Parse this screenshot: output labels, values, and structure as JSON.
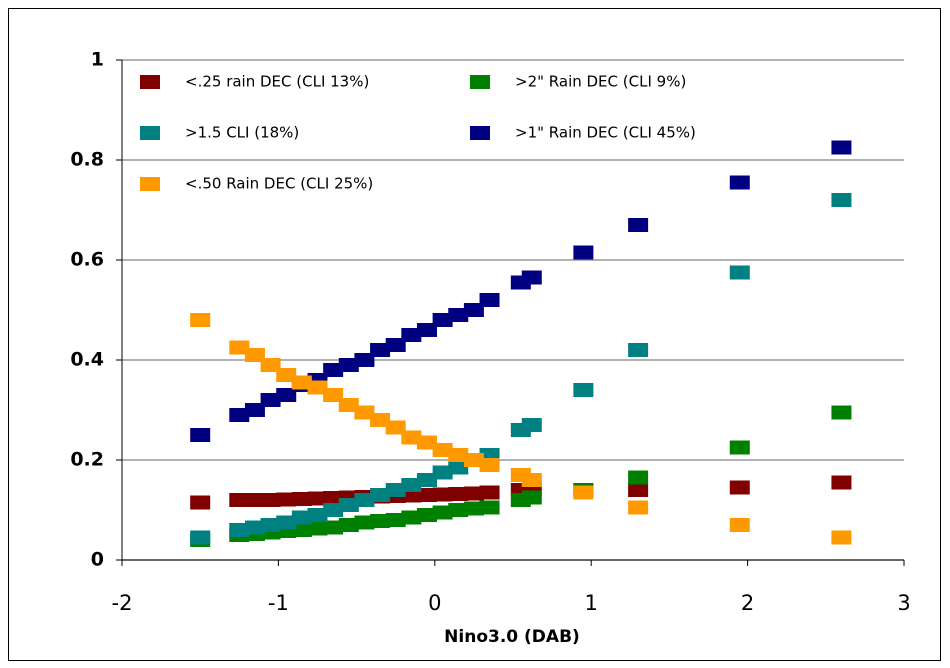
{
  "chart_data": {
    "type": "scatter",
    "x_label": "Nino3.0 (DAB)",
    "x": [
      -1.5,
      -1.25,
      -1.15,
      -1.05,
      -0.95,
      -0.85,
      -0.75,
      -0.65,
      -0.55,
      -0.45,
      -0.35,
      -0.25,
      -0.15,
      -0.05,
      0.05,
      0.15,
      0.25,
      0.35,
      0.55,
      0.62,
      0.95,
      1.3,
      1.95,
      2.6
    ],
    "series": [
      {
        "name": "<.25 rain DEC (CLI 13%)",
        "color": "#800000",
        "values": [
          0.115,
          0.12,
          0.12,
          0.12,
          0.121,
          0.122,
          0.123,
          0.124,
          0.125,
          0.126,
          0.127,
          0.128,
          0.129,
          0.13,
          0.131,
          0.132,
          0.133,
          0.135,
          0.14,
          0.14,
          0.14,
          0.14,
          0.145,
          0.155
        ]
      },
      {
        "name": ">2\" Rain DEC (CLI 9%)",
        "color": "#008000",
        "values": [
          0.04,
          0.05,
          0.052,
          0.055,
          0.058,
          0.06,
          0.063,
          0.065,
          0.07,
          0.075,
          0.078,
          0.08,
          0.085,
          0.09,
          0.095,
          0.1,
          0.103,
          0.105,
          0.12,
          0.125,
          0.14,
          0.165,
          0.225,
          0.295
        ]
      },
      {
        "name": ">1.5 CLI (18%)",
        "color": "#008080",
        "values": [
          0.045,
          0.06,
          0.065,
          0.07,
          0.075,
          0.085,
          0.09,
          0.1,
          0.11,
          0.12,
          0.13,
          0.14,
          0.15,
          0.16,
          0.175,
          0.185,
          0.2,
          0.21,
          0.26,
          0.27,
          0.34,
          0.42,
          0.575,
          0.72
        ]
      },
      {
        "name": ">1\" Rain DEC (CLI 45%)",
        "color": "#000080",
        "values": [
          0.25,
          0.29,
          0.3,
          0.32,
          0.33,
          0.35,
          0.36,
          0.38,
          0.39,
          0.4,
          0.42,
          0.43,
          0.45,
          0.46,
          0.48,
          0.49,
          0.5,
          0.52,
          0.555,
          0.565,
          0.615,
          0.67,
          0.755,
          0.825
        ]
      },
      {
        "name": "<.50 Rain DEC (CLI 25%)",
        "color": "#ff9900",
        "values": [
          0.48,
          0.425,
          0.41,
          0.39,
          0.37,
          0.355,
          0.345,
          0.33,
          0.31,
          0.295,
          0.28,
          0.265,
          0.245,
          0.235,
          0.22,
          0.21,
          0.2,
          0.19,
          0.17,
          0.16,
          0.135,
          0.105,
          0.07,
          0.045
        ]
      }
    ],
    "xlim": [
      -2,
      3
    ],
    "xticks": [
      -2,
      -1,
      0,
      1,
      2,
      3
    ],
    "ylim": [
      0,
      1
    ],
    "yticks": [
      0,
      0.2,
      0.4,
      0.6,
      0.8,
      1
    ],
    "grid": true
  }
}
